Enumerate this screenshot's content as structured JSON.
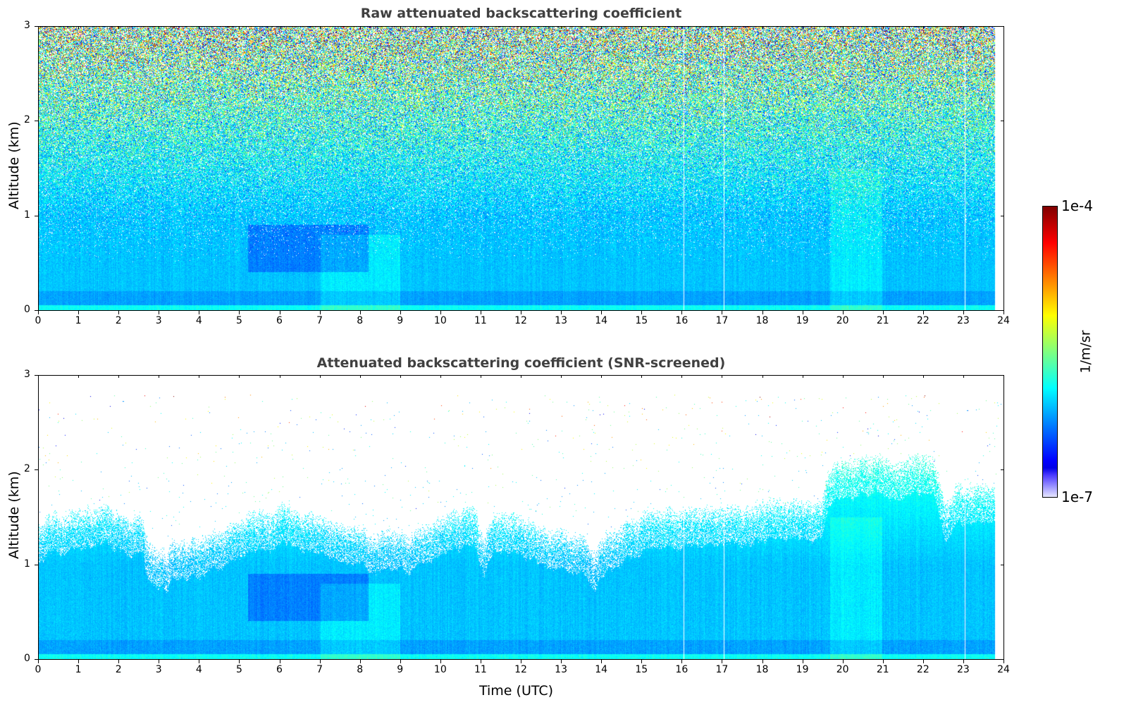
{
  "chart_data": [
    {
      "type": "heatmap",
      "title": "Raw attenuated backscattering coefficient",
      "xlabel": "",
      "ylabel": "Altitude (km)",
      "xlim": [
        0,
        24
      ],
      "ylim": [
        0,
        3
      ],
      "xticks": [
        "0",
        "1",
        "2",
        "3",
        "4",
        "5",
        "6",
        "7",
        "8",
        "9",
        "10",
        "11",
        "12",
        "13",
        "14",
        "15",
        "16",
        "17",
        "18",
        "19",
        "20",
        "21",
        "22",
        "23",
        "24"
      ],
      "yticks": [
        "0",
        "1",
        "2",
        "3"
      ],
      "data_end_hour": 23.8,
      "gaps_hours": [
        16.05,
        17.05,
        23.05
      ],
      "screened": false
    },
    {
      "type": "heatmap",
      "title": "Attenuated backscattering coefficient (SNR-screened)",
      "xlabel": "Time (UTC)",
      "ylabel": "Altitude (km)",
      "xlim": [
        0,
        24
      ],
      "ylim": [
        0,
        3
      ],
      "xticks": [
        "0",
        "1",
        "2",
        "3",
        "4",
        "5",
        "6",
        "7",
        "8",
        "9",
        "10",
        "11",
        "12",
        "13",
        "14",
        "15",
        "16",
        "17",
        "18",
        "19",
        "20",
        "21",
        "22",
        "23",
        "24"
      ],
      "yticks": [
        "0",
        "1",
        "2",
        "3"
      ],
      "data_end_hour": 23.8,
      "gaps_hours": [
        16.05,
        17.05,
        23.05
      ],
      "screened": true
    }
  ],
  "colorbar": {
    "label": "1/m/sr",
    "min_label": "1e-7",
    "max_label": "1e-4",
    "min": 1e-07,
    "max": 0.0001,
    "scale": "log",
    "colormap": "jet"
  }
}
